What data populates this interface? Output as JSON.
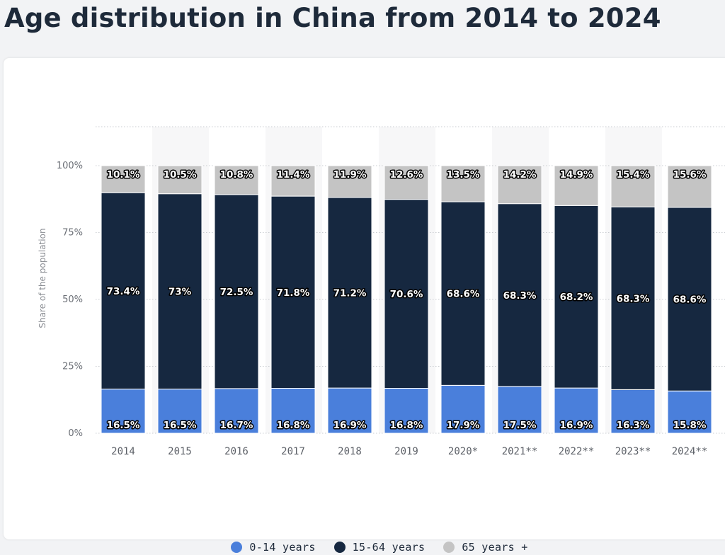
{
  "page": {
    "title": "Age distribution in China from 2014 to 2024"
  },
  "colors": {
    "age_0_14": "#4a7fdb",
    "age_15_64": "#162840",
    "age_65_plus": "#c4c4c4",
    "page_background": "#f2f3f5",
    "card_background": "#ffffff",
    "band_background": "#f7f7f8"
  },
  "chart_data": {
    "type": "bar",
    "stacked": true,
    "title": "Age distribution in China from 2014 to 2024",
    "xlabel": "",
    "ylabel": "Share of the population",
    "ylim": [
      0,
      100
    ],
    "y_ticks": [
      "0%",
      "25%",
      "50%",
      "75%",
      "100%"
    ],
    "grid": true,
    "legend_position": "bottom",
    "categories": [
      "2014",
      "2015",
      "2016",
      "2017",
      "2018",
      "2019",
      "2020*",
      "2021**",
      "2022**",
      "2023**",
      "2024**"
    ],
    "series": [
      {
        "name": "0-14 years",
        "values": [
          16.5,
          16.5,
          16.7,
          16.8,
          16.9,
          16.8,
          17.9,
          17.5,
          16.9,
          16.3,
          15.8
        ],
        "labels": [
          "16.5%",
          "16.5%",
          "16.7%",
          "16.8%",
          "16.9%",
          "16.8%",
          "17.9%",
          "17.5%",
          "16.9%",
          "16.3%",
          "15.8%"
        ]
      },
      {
        "name": "15-64 years",
        "values": [
          73.4,
          73,
          72.5,
          71.8,
          71.2,
          70.6,
          68.6,
          68.3,
          68.2,
          68.3,
          68.6
        ],
        "labels": [
          "73.4%",
          "73%",
          "72.5%",
          "71.8%",
          "71.2%",
          "70.6%",
          "68.6%",
          "68.3%",
          "68.2%",
          "68.3%",
          "68.6%"
        ]
      },
      {
        "name": "65 years +",
        "values": [
          10.1,
          10.5,
          10.8,
          11.4,
          11.9,
          12.6,
          13.5,
          14.2,
          14.9,
          15.4,
          15.6
        ],
        "labels": [
          "10.1%",
          "10.5%",
          "10.8%",
          "11.4%",
          "11.9%",
          "12.6%",
          "13.5%",
          "14.2%",
          "14.9%",
          "15.4%",
          "15.6%"
        ]
      }
    ]
  },
  "legend": {
    "items": [
      {
        "label": "0-14 years"
      },
      {
        "label": "15-64 years"
      },
      {
        "label": "65 years +"
      }
    ]
  }
}
